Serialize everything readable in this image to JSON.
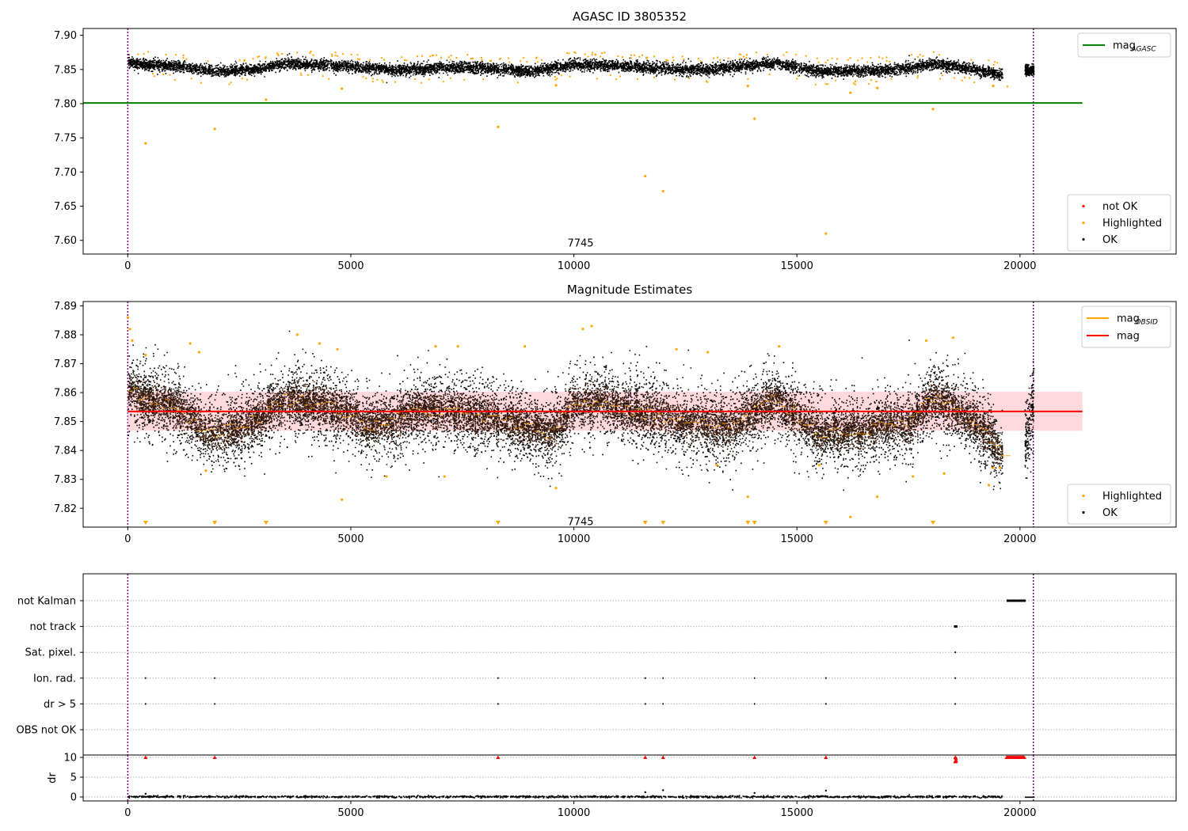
{
  "chart_data": [
    {
      "id": "panel1",
      "type": "scatter",
      "title": "AGASC ID 3805352",
      "xlim": [
        -1000,
        23500
      ],
      "ylim": [
        7.58,
        7.91
      ],
      "x_ticks": [
        0,
        5000,
        10000,
        15000,
        20000
      ],
      "x_tick_labels": [
        "0",
        "5000",
        "10000",
        "15000",
        "20000"
      ],
      "y_ticks": [
        7.6,
        7.65,
        7.7,
        7.75,
        7.8,
        7.85,
        7.9
      ],
      "y_tick_labels": [
        "7.60",
        "7.65",
        "7.70",
        "7.75",
        "7.80",
        "7.85",
        "7.90"
      ],
      "vlines": [
        0,
        20300
      ],
      "vline_color": "#800080",
      "annotation": {
        "text": "7745",
        "x": 10150,
        "y": 7.597
      },
      "hline": {
        "name": "mag_AGASC",
        "y": 7.801,
        "x_range": [
          -1000,
          21400
        ],
        "color": "#008000"
      },
      "ok_points_trend": {
        "color": "#000000",
        "x": [
          0,
          300,
          1000,
          2000,
          3000,
          3500,
          4500,
          6000,
          7500,
          9000,
          10000,
          11000,
          12000,
          13000,
          14500,
          15500,
          17000,
          18000,
          18500,
          19000,
          19600
        ],
        "y": [
          7.862,
          7.858,
          7.856,
          7.848,
          7.852,
          7.86,
          7.857,
          7.85,
          7.854,
          7.848,
          7.858,
          7.856,
          7.852,
          7.851,
          7.86,
          7.848,
          7.85,
          7.858,
          7.856,
          7.85,
          7.843
        ],
        "spread": 0.01,
        "extra_segment": {
          "x": [
            20100,
            20300
          ],
          "y": [
            7.85,
            7.85
          ]
        }
      },
      "highlighted_points": {
        "color": "#ffa500",
        "x": [
          400,
          1950,
          3100,
          8300,
          11600,
          12000,
          13900,
          14050,
          15650,
          18050,
          4800,
          16200,
          16800,
          9600,
          19400
        ],
        "y": [
          7.742,
          7.763,
          7.806,
          7.766,
          7.694,
          7.672,
          7.826,
          7.778,
          7.61,
          7.792,
          7.822,
          7.816,
          7.823,
          7.827,
          7.826
        ]
      },
      "legend_top": [
        {
          "label": "mag",
          "sub": "AGASC",
          "color": "#008000",
          "kind": "line"
        }
      ],
      "legend_bottom": [
        {
          "label": "not OK",
          "color": "#ff0000",
          "kind": "dot"
        },
        {
          "label": "Highlighted",
          "color": "#ffa500",
          "kind": "dot"
        },
        {
          "label": "OK",
          "color": "#000000",
          "kind": "dot"
        }
      ]
    },
    {
      "id": "panel2",
      "type": "scatter",
      "title": "Magnitude Estimates",
      "xlim": [
        -1000,
        23500
      ],
      "ylim": [
        7.8135,
        7.8915
      ],
      "x_ticks": [
        0,
        5000,
        10000,
        15000,
        20000
      ],
      "x_tick_labels": [
        "0",
        "5000",
        "10000",
        "15000",
        "20000"
      ],
      "y_ticks": [
        7.82,
        7.83,
        7.84,
        7.85,
        7.86,
        7.87,
        7.88,
        7.89
      ],
      "y_tick_labels": [
        "7.82",
        "7.83",
        "7.84",
        "7.85",
        "7.86",
        "7.87",
        "7.88",
        "7.89"
      ],
      "vlines": [
        0,
        20300
      ],
      "vline_color": "#800080",
      "annotation": {
        "text": "7745",
        "x": 10150,
        "y": 7.8155
      },
      "mag_line": {
        "name": "mag",
        "y": 7.8535,
        "x_range": [
          0,
          21400
        ],
        "color": "#ff0000"
      },
      "mag_band": {
        "y_range": [
          7.8468,
          7.8603
        ],
        "x_range": [
          0,
          21400
        ],
        "color": "#ffc0c8"
      },
      "obsid_segments_color": "#ffa500",
      "ok_points_trend": {
        "color": "#000000",
        "x": [
          0,
          300,
          1000,
          1800,
          2500,
          3000,
          3500,
          4500,
          5500,
          6500,
          7500,
          8500,
          9500,
          10000,
          10500,
          11500,
          12500,
          13500,
          14500,
          15500,
          16500,
          17500,
          18000,
          18500,
          19000,
          19600
        ],
        "y": [
          7.862,
          7.858,
          7.856,
          7.846,
          7.848,
          7.852,
          7.858,
          7.856,
          7.848,
          7.854,
          7.853,
          7.85,
          7.846,
          7.856,
          7.857,
          7.853,
          7.85,
          7.848,
          7.858,
          7.846,
          7.847,
          7.85,
          7.858,
          7.855,
          7.849,
          7.84
        ],
        "spread": 0.012,
        "extra_segment": {
          "x": [
            20100,
            20300
          ],
          "y": [
            7.843,
            7.856
          ]
        }
      },
      "highlighted_points": {
        "color": "#ffa500",
        "x": [
          0,
          50,
          100,
          400,
          1400,
          1600,
          3800,
          4300,
          4700,
          6900,
          7400,
          8900,
          10200,
          10400,
          12300,
          13000,
          14600,
          17900,
          18500,
          1750,
          4800,
          5800,
          7100,
          9600,
          13200,
          13900,
          15500,
          16200,
          16800,
          17600,
          18300,
          19300,
          19400,
          19550
        ],
        "y": [
          7.886,
          7.882,
          7.878,
          7.873,
          7.877,
          7.874,
          7.88,
          7.877,
          7.875,
          7.876,
          7.876,
          7.876,
          7.882,
          7.883,
          7.875,
          7.874,
          7.876,
          7.878,
          7.879,
          7.833,
          7.823,
          7.831,
          7.831,
          7.827,
          7.835,
          7.824,
          7.835,
          7.817,
          7.824,
          7.831,
          7.832,
          7.828,
          7.834,
          7.834
        ]
      },
      "offscale_markers": {
        "color": "#ffa500",
        "y": 7.815,
        "x": [
          400,
          1950,
          3100,
          8300,
          11600,
          12000,
          13900,
          14050,
          15650,
          18050
        ]
      },
      "legend_top": [
        {
          "label": "mag",
          "sub": "OBSID",
          "color": "#ffa500",
          "kind": "line"
        },
        {
          "label": "mag",
          "sub": "",
          "color": "#ff0000",
          "kind": "line"
        }
      ],
      "legend_bottom": [
        {
          "label": "Highlighted",
          "color": "#ffa500",
          "kind": "dot"
        },
        {
          "label": "OK",
          "color": "#000000",
          "kind": "dot"
        }
      ]
    },
    {
      "id": "panel3",
      "type": "scatter",
      "title": "",
      "xlim": [
        -1000,
        23500
      ],
      "categories": [
        "not Kalman",
        "not track",
        "Sat. pixel.",
        "Ion. rad.",
        "dr > 5",
        "OBS not OK"
      ],
      "vlines": [
        0,
        20300
      ],
      "vline_color": "#800080",
      "flags": [
        {
          "category": "not Kalman",
          "x_range": [
            19700,
            20100
          ]
        },
        {
          "category": "not track",
          "x_range": [
            18520,
            18580
          ]
        },
        {
          "category": "Sat. pixel.",
          "x": [
            18550
          ]
        },
        {
          "category": "Ion. rad.",
          "x": [
            400,
            1950,
            8300,
            11600,
            12000,
            14050,
            15650,
            18550
          ]
        },
        {
          "category": "dr > 5",
          "x": [
            400,
            1950,
            8300,
            11600,
            12000,
            14050,
            15650,
            18550
          ]
        }
      ]
    },
    {
      "id": "panel4",
      "type": "scatter",
      "ylabel": "dr",
      "xlim": [
        -1000,
        23500
      ],
      "ylim": [
        -1,
        10.6
      ],
      "x_ticks": [
        0,
        5000,
        10000,
        15000,
        20000
      ],
      "x_tick_labels": [
        "0",
        "5000",
        "10000",
        "15000",
        "20000"
      ],
      "y_ticks": [
        0,
        5,
        10
      ],
      "y_tick_labels": [
        "0",
        "5",
        "10"
      ],
      "vlines": [
        0,
        20300
      ],
      "vline_color": "#800080",
      "clipped_markers": {
        "color": "#ff0000",
        "y": 10,
        "x": [
          400,
          1950,
          8300,
          11600,
          12000,
          14050,
          15650,
          18550
        ],
        "range": [
          19700,
          20100
        ]
      },
      "baseline_points": {
        "color": "#000000",
        "x_range": [
          0,
          19600
        ],
        "y": 0.2,
        "extra": {
          "x": [
            20100,
            20300
          ],
          "y": 0.1
        }
      },
      "scattered_points": {
        "color": "#000000",
        "x": [
          400,
          11600,
          12000,
          14050,
          15650
        ],
        "y": [
          0.8,
          1.2,
          1.7,
          1.0,
          1.6
        ]
      }
    }
  ]
}
